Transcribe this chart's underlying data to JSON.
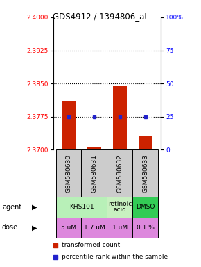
{
  "title": "GDS4912 / 1394806_at",
  "samples": [
    "GSM580630",
    "GSM580631",
    "GSM580632",
    "GSM580633"
  ],
  "bar_values": [
    2.381,
    2.3705,
    2.3845,
    2.373
  ],
  "bar_base": 2.37,
  "bar_color": "#cc2200",
  "blue_values": [
    25,
    25,
    25,
    25
  ],
  "blue_color": "#2222cc",
  "ylim_left": [
    2.37,
    2.4
  ],
  "ylim_right": [
    0,
    100
  ],
  "yticks_left": [
    2.37,
    2.3775,
    2.385,
    2.3925,
    2.4
  ],
  "yticks_right": [
    0,
    25,
    50,
    75,
    100
  ],
  "hlines": [
    2.3775,
    2.385,
    2.3925
  ],
  "agent_defs": [
    [
      0,
      1,
      "KHS101",
      "#b8f0b8"
    ],
    [
      2,
      2,
      "retinoic\nacid",
      "#c8f0c0"
    ],
    [
      3,
      3,
      "DMSO",
      "#33cc55"
    ]
  ],
  "dose_labels": [
    "5 uM",
    "1.7 uM",
    "1 uM",
    "0.1 %"
  ],
  "dose_color": "#dd88dd",
  "sample_bg": "#cccccc",
  "legend_red": "transformed count",
  "legend_blue": "percentile rank within the sample"
}
